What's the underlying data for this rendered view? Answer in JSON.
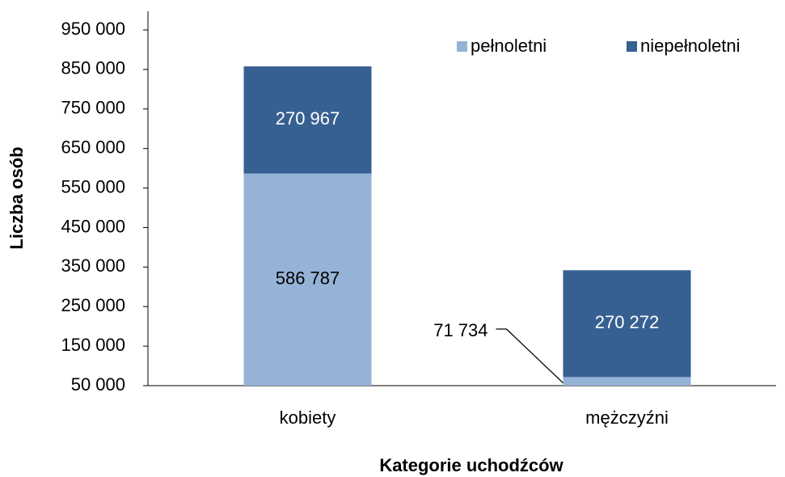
{
  "chart_data": {
    "type": "stacked_bar",
    "x_label": "Kategorie uchodźców",
    "y_label": "Liczba osób",
    "categories": [
      "kobiety",
      "mężczyźni"
    ],
    "series": [
      {
        "name": "pełnoletni",
        "color": "#95b3d7",
        "values": [
          586787,
          71734
        ],
        "value_labels": [
          "586 787",
          "71 734"
        ]
      },
      {
        "name": "niepełnoletni",
        "color": "#376092",
        "values": [
          270967,
          270272
        ],
        "value_labels": [
          "270 967",
          "270 272"
        ]
      }
    ],
    "ylim": [
      50000,
      1000000
    ],
    "yticks": [
      {
        "value": 50000,
        "label": "50 000"
      },
      {
        "value": 150000,
        "label": "150 000"
      },
      {
        "value": 250000,
        "label": "250 000"
      },
      {
        "value": 350000,
        "label": "350 000"
      },
      {
        "value": 450000,
        "label": "450 000"
      },
      {
        "value": 550000,
        "label": "550 000"
      },
      {
        "value": 650000,
        "label": "650 000"
      },
      {
        "value": 750000,
        "label": "750 000"
      },
      {
        "value": 850000,
        "label": "850 000"
      },
      {
        "value": 950000,
        "label": "950 000"
      }
    ],
    "grid": false,
    "legend": "top-right"
  }
}
